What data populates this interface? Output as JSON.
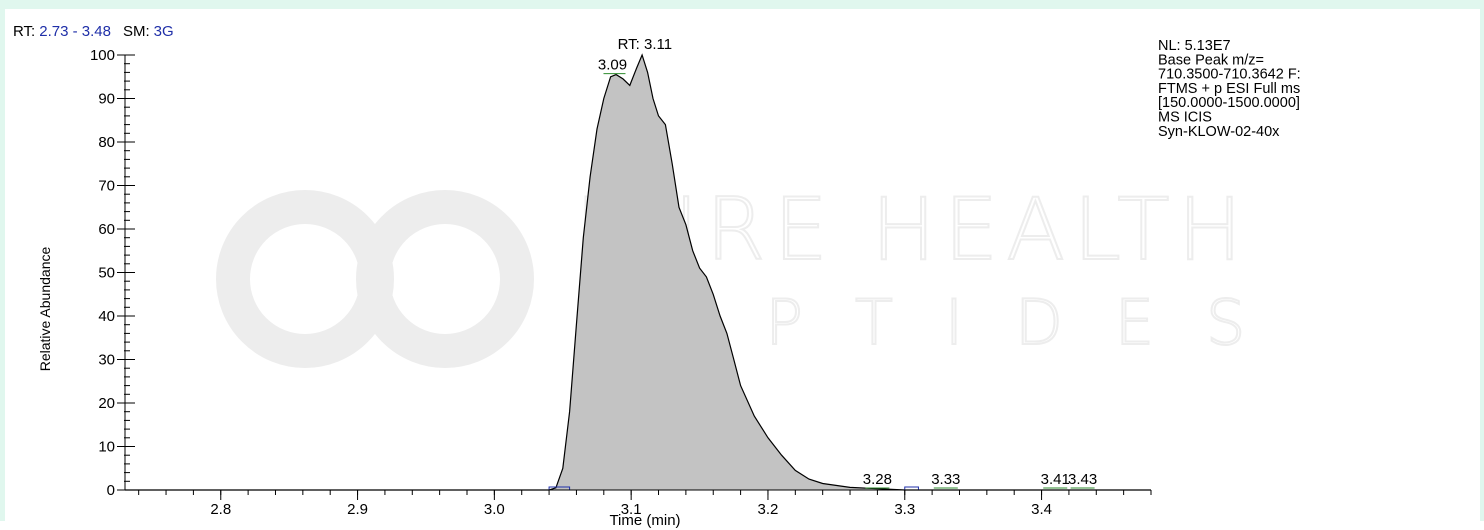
{
  "header": {
    "rt_label": "RT:",
    "rt_value": "2.73 - 3.48",
    "sm_label": "SM:",
    "sm_value": "3G"
  },
  "info_lines": [
    "NL: 5.13E7",
    "Base Peak m/z=",
    "710.3500-710.3642 F:",
    "FTMS + p ESI Full ms",
    "[150.0000-1500.0000]",
    "MS  ICIS",
    "Syn-KLOW-02-40x"
  ],
  "watermark": {
    "line1": "PURE HEALTH",
    "line2": "PEPTIDES"
  },
  "colors": {
    "frame": "#e0f7ee",
    "fill": "#c3c3c3",
    "trace": "#000000",
    "baseline": "#1f2fa8",
    "peak_label_tick": "#2e8b2e",
    "watermark": "#ededed"
  },
  "chart_data": {
    "type": "area",
    "xlabel": "Time (min)",
    "ylabel": "Relative Abundance",
    "xlim": [
      2.73,
      3.48
    ],
    "ylim": [
      0,
      100
    ],
    "x_ticks": [
      2.8,
      2.9,
      3.0,
      3.1,
      3.2,
      3.3,
      3.4
    ],
    "x_tick_labels": [
      "2.8",
      "2.9",
      "3.0",
      "3.1",
      "3.2",
      "3.3",
      "3.4"
    ],
    "y_ticks": [
      0,
      10,
      20,
      30,
      40,
      50,
      60,
      70,
      80,
      90,
      100
    ],
    "y_tick_labels": [
      "0",
      "10",
      "20",
      "30",
      "40",
      "50",
      "60",
      "70",
      "80",
      "90",
      "100"
    ],
    "series": [
      {
        "x": [
          2.73,
          3.04,
          3.045,
          3.05,
          3.055,
          3.06,
          3.065,
          3.07,
          3.075,
          3.08,
          3.085,
          3.089,
          3.094,
          3.099,
          3.104,
          3.108,
          3.112,
          3.116,
          3.12,
          3.125,
          3.13,
          3.135,
          3.14,
          3.145,
          3.15,
          3.155,
          3.16,
          3.165,
          3.17,
          3.175,
          3.18,
          3.19,
          3.2,
          3.21,
          3.22,
          3.23,
          3.24,
          3.26,
          3.28,
          3.3,
          3.48
        ],
        "values": [
          0,
          0,
          0.5,
          5,
          18,
          38,
          58,
          72,
          83,
          90,
          95,
          95.5,
          94.5,
          93,
          97,
          100,
          96,
          90,
          86,
          84,
          75,
          65,
          61,
          55,
          51,
          49,
          45,
          40,
          36,
          30,
          24,
          17,
          12,
          8,
          4.5,
          2.5,
          1.5,
          0.6,
          0.3,
          0,
          0
        ]
      }
    ],
    "peak_labels": [
      {
        "x": 3.11,
        "y": 100,
        "text": "RT: 3.11"
      },
      {
        "x": 3.09,
        "y": 95.5,
        "text": "3.09"
      },
      {
        "x": 3.28,
        "y": 0.3,
        "text": "3.28"
      },
      {
        "x": 3.33,
        "y": 0.3,
        "text": "3.33"
      },
      {
        "x": 3.41,
        "y": 0.3,
        "text": "3.41"
      },
      {
        "x": 3.43,
        "y": 0.3,
        "text": "3.43"
      }
    ],
    "baseline_segments": [
      [
        3.04,
        3.055
      ],
      [
        3.3,
        3.31
      ]
    ],
    "grid": false,
    "legend": "none"
  }
}
